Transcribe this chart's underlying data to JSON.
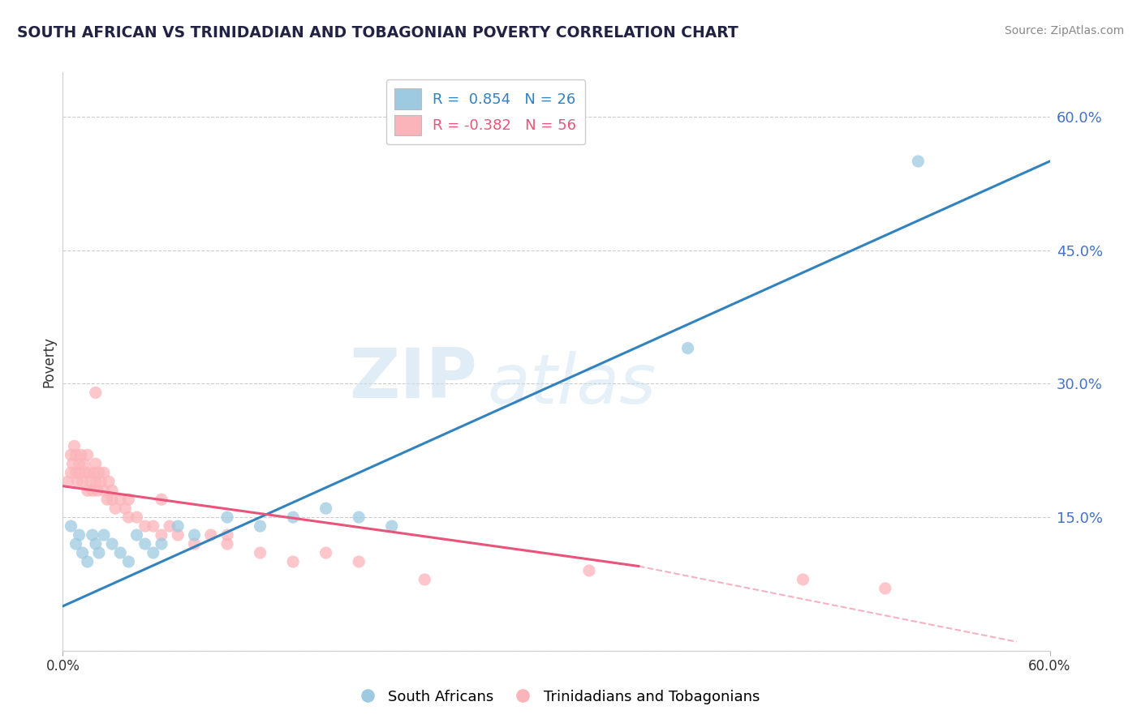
{
  "title": "SOUTH AFRICAN VS TRINIDADIAN AND TOBAGONIAN POVERTY CORRELATION CHART",
  "source": "Source: ZipAtlas.com",
  "ylabel": "Poverty",
  "xlim": [
    0.0,
    0.6
  ],
  "ylim": [
    0.0,
    0.65
  ],
  "legend1_R": "0.854",
  "legend1_N": "26",
  "legend2_R": "-0.382",
  "legend2_N": "56",
  "blue_color": "#9ecae1",
  "pink_color": "#fbb4b9",
  "blue_line_color": "#3182bd",
  "pink_line_color": "#e8547a",
  "watermark_zip": "ZIP",
  "watermark_atlas": "atlas",
  "blue_x": [
    0.005,
    0.008,
    0.01,
    0.012,
    0.015,
    0.018,
    0.02,
    0.022,
    0.025,
    0.03,
    0.035,
    0.04,
    0.045,
    0.05,
    0.055,
    0.06,
    0.07,
    0.08,
    0.1,
    0.12,
    0.14,
    0.16,
    0.18,
    0.2,
    0.38,
    0.52
  ],
  "blue_y": [
    0.14,
    0.12,
    0.13,
    0.11,
    0.1,
    0.13,
    0.12,
    0.11,
    0.13,
    0.12,
    0.11,
    0.1,
    0.13,
    0.12,
    0.11,
    0.12,
    0.14,
    0.13,
    0.15,
    0.14,
    0.15,
    0.16,
    0.15,
    0.14,
    0.34,
    0.55
  ],
  "pink_x": [
    0.003,
    0.005,
    0.005,
    0.006,
    0.007,
    0.008,
    0.008,
    0.009,
    0.01,
    0.01,
    0.011,
    0.012,
    0.013,
    0.014,
    0.015,
    0.015,
    0.016,
    0.017,
    0.018,
    0.019,
    0.02,
    0.02,
    0.021,
    0.022,
    0.023,
    0.025,
    0.025,
    0.027,
    0.028,
    0.03,
    0.03,
    0.032,
    0.035,
    0.038,
    0.04,
    0.04,
    0.045,
    0.05,
    0.055,
    0.06,
    0.065,
    0.07,
    0.08,
    0.09,
    0.1,
    0.12,
    0.14,
    0.16,
    0.18,
    0.22,
    0.02,
    0.06,
    0.1,
    0.32,
    0.5,
    0.45
  ],
  "pink_y": [
    0.19,
    0.2,
    0.22,
    0.21,
    0.23,
    0.2,
    0.22,
    0.19,
    0.21,
    0.2,
    0.22,
    0.19,
    0.21,
    0.2,
    0.22,
    0.18,
    0.2,
    0.19,
    0.18,
    0.2,
    0.19,
    0.21,
    0.18,
    0.2,
    0.19,
    0.18,
    0.2,
    0.17,
    0.19,
    0.18,
    0.17,
    0.16,
    0.17,
    0.16,
    0.15,
    0.17,
    0.15,
    0.14,
    0.14,
    0.13,
    0.14,
    0.13,
    0.12,
    0.13,
    0.12,
    0.11,
    0.1,
    0.11,
    0.1,
    0.08,
    0.29,
    0.17,
    0.13,
    0.09,
    0.07,
    0.08
  ],
  "right_yticks": [
    0.0,
    0.15,
    0.3,
    0.45,
    0.6
  ],
  "right_yticklabels": [
    "",
    "15.0%",
    "30.0%",
    "45.0%",
    "60.0%"
  ],
  "grid_yticks": [
    0.0,
    0.15,
    0.3,
    0.45,
    0.6
  ],
  "grid_color": "#cccccc",
  "background_color": "#ffffff",
  "title_color": "#222244",
  "axis_tick_color": "#4472c4"
}
